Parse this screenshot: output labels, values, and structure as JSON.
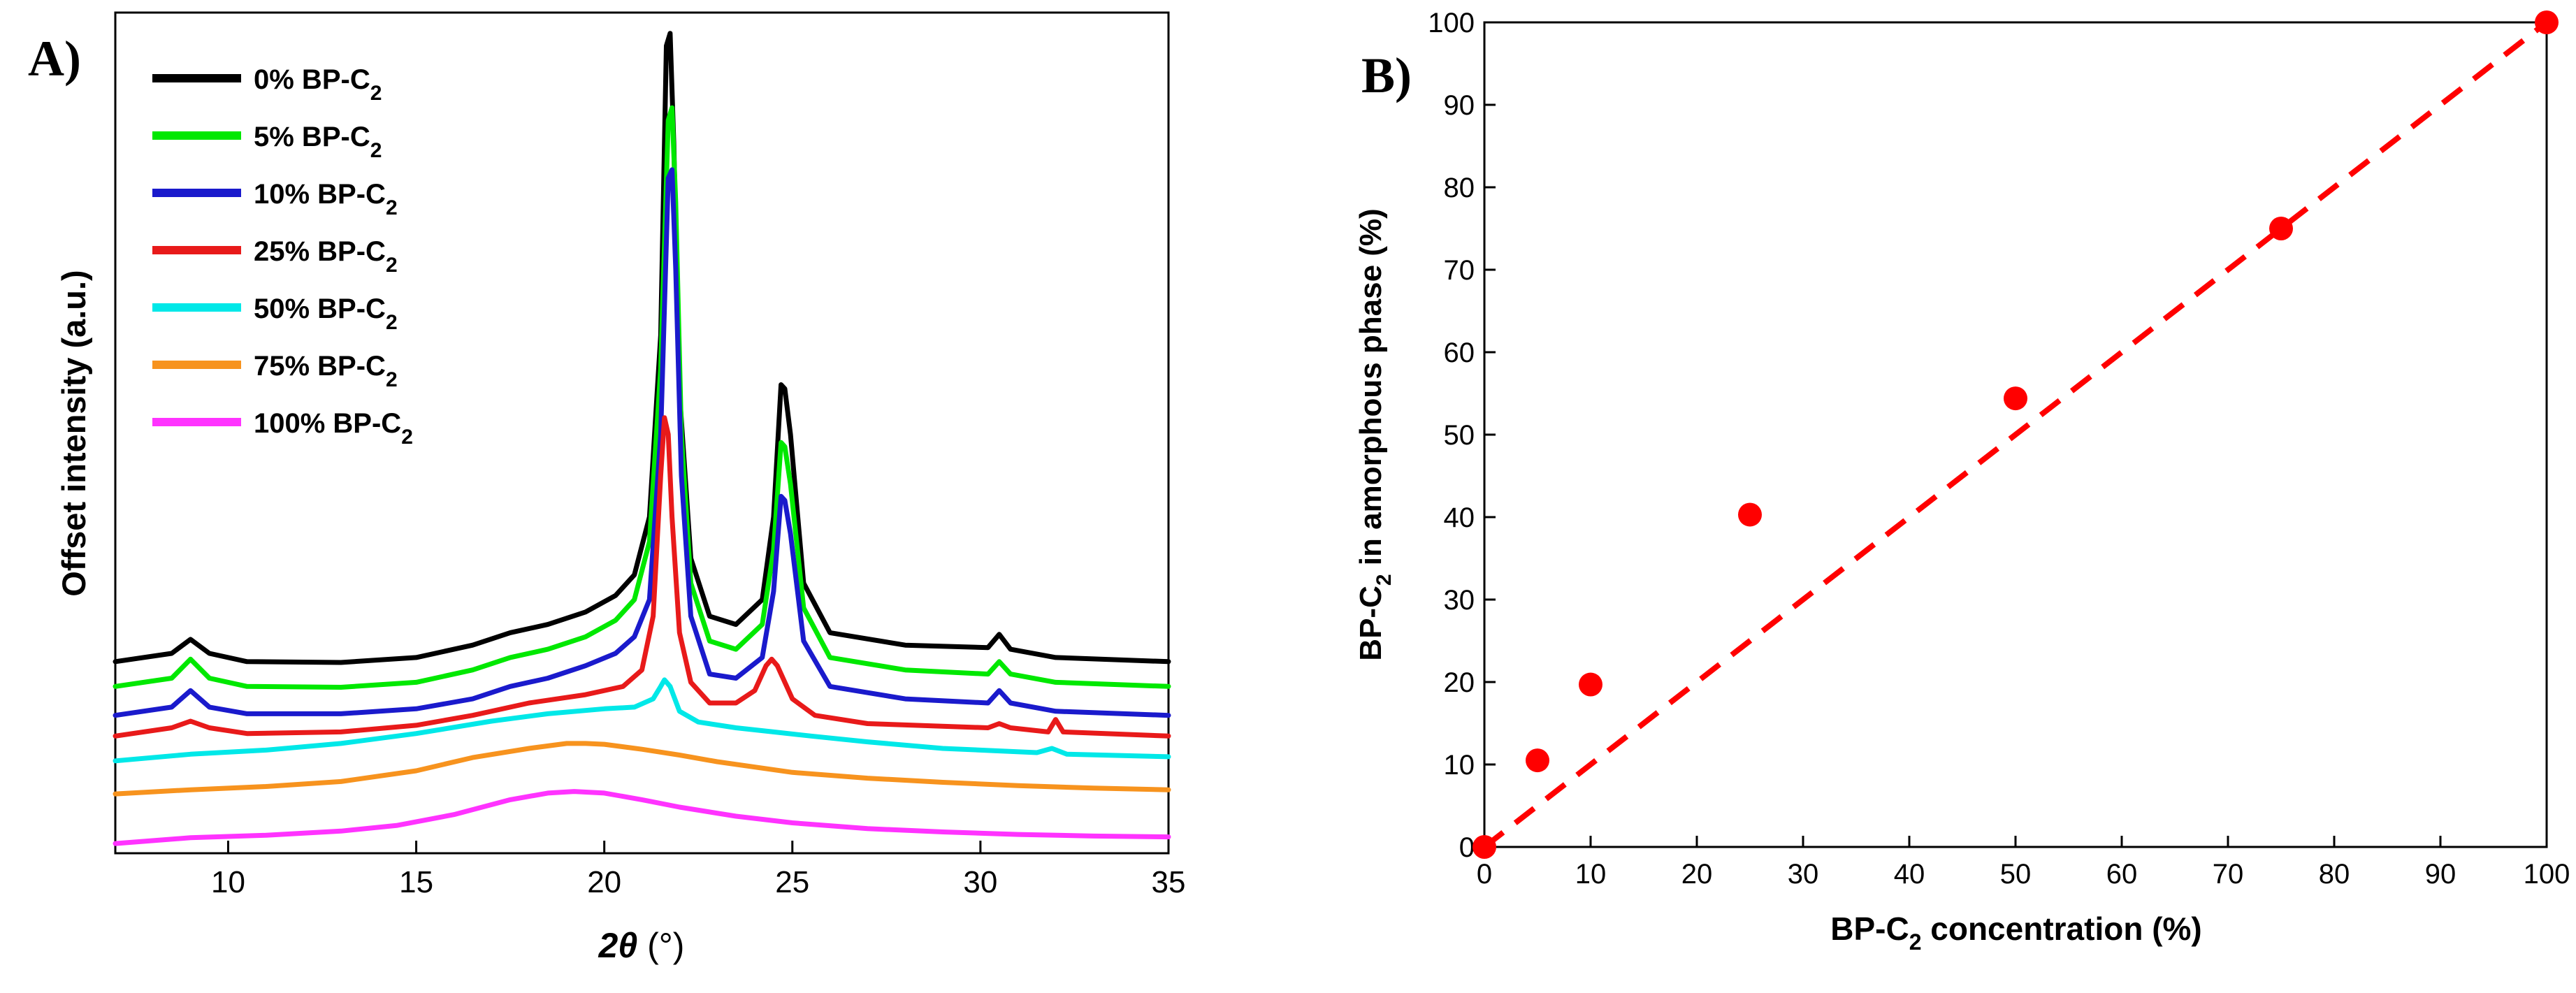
{
  "chart_data": [
    {
      "type": "line",
      "panel_label": "A)",
      "xlabel_symbol": "2θ",
      "xlabel_unit": " (°)",
      "ylabel": "Offset intensity (a.u.)",
      "xlim": [
        7,
        35
      ],
      "xticks": [
        10,
        15,
        20,
        25,
        30,
        35
      ],
      "y_units": "arbitrary (offset intensity, 0–100 scale)",
      "legend_position": "top-left",
      "series": [
        {
          "name": "0% BP-C",
          "name_sub": "2",
          "color": "#000000",
          "x": [
            7,
            8.5,
            9.0,
            9.5,
            10.5,
            13,
            15,
            16.5,
            17.5,
            18.5,
            19.5,
            20.3,
            20.8,
            21.2,
            21.5,
            21.65,
            21.75,
            21.85,
            22.0,
            22.3,
            22.8,
            23.5,
            24.2,
            24.5,
            24.7,
            24.8,
            24.95,
            25.3,
            26.0,
            28,
            30.2,
            30.5,
            30.8,
            32,
            35
          ],
          "y": [
            22.5,
            23.5,
            25.2,
            23.5,
            22.5,
            22.4,
            23.0,
            24.5,
            26.0,
            27.0,
            28.5,
            30.5,
            33.0,
            40.0,
            62.0,
            97.0,
            98.5,
            85.0,
            55.0,
            35.0,
            28.0,
            27.0,
            30.0,
            40.0,
            56.0,
            55.5,
            50.0,
            32.0,
            26.0,
            24.5,
            24.2,
            25.8,
            24.0,
            23.0,
            22.5
          ]
        },
        {
          "name": "5% BP-C",
          "name_sub": "2",
          "color": "#00e800",
          "x": [
            7,
            8.5,
            9.0,
            9.5,
            10.5,
            13,
            15,
            16.5,
            17.5,
            18.5,
            19.5,
            20.3,
            20.8,
            21.2,
            21.5,
            21.7,
            21.8,
            21.9,
            22.05,
            22.3,
            22.8,
            23.5,
            24.2,
            24.5,
            24.7,
            24.8,
            24.95,
            25.3,
            26.0,
            28,
            30.2,
            30.5,
            30.8,
            32,
            35
          ],
          "y": [
            19.5,
            20.5,
            22.8,
            20.5,
            19.5,
            19.4,
            20.0,
            21.5,
            23.0,
            24.0,
            25.5,
            27.5,
            30.0,
            37.0,
            58.0,
            88.0,
            89.5,
            78.0,
            50.0,
            32.0,
            25.0,
            24.0,
            27.0,
            36.0,
            49.0,
            48.5,
            44.0,
            29.0,
            23.0,
            21.5,
            21.0,
            22.5,
            21.0,
            20.0,
            19.5
          ]
        },
        {
          "name": "10% BP-C",
          "name_sub": "2",
          "color": "#1a1acc",
          "x": [
            7,
            8.5,
            9.0,
            9.5,
            10.5,
            13,
            15,
            16.5,
            17.5,
            18.5,
            19.5,
            20.3,
            20.8,
            21.2,
            21.5,
            21.7,
            21.8,
            21.9,
            22.05,
            22.3,
            22.8,
            23.5,
            24.2,
            24.5,
            24.7,
            24.8,
            24.95,
            25.3,
            26.0,
            28,
            30.2,
            30.5,
            30.8,
            32,
            35
          ],
          "y": [
            16.0,
            17.0,
            19.0,
            17.0,
            16.2,
            16.2,
            16.8,
            18.0,
            19.5,
            20.5,
            22.0,
            23.5,
            25.5,
            30.0,
            50.0,
            81.0,
            82.0,
            70.0,
            45.0,
            28.0,
            21.0,
            20.5,
            23.0,
            31.0,
            42.5,
            42.0,
            38.0,
            25.0,
            19.5,
            18.0,
            17.5,
            19.0,
            17.5,
            16.5,
            16.0
          ]
        },
        {
          "name": "25% BP-C",
          "name_sub": "2",
          "color": "#e81a1a",
          "x": [
            7,
            8.5,
            9.0,
            9.5,
            10.5,
            13,
            15,
            16.5,
            18,
            19.5,
            20.5,
            21.0,
            21.3,
            21.5,
            21.6,
            21.7,
            21.8,
            22.0,
            22.3,
            22.8,
            23.5,
            24.0,
            24.3,
            24.45,
            24.6,
            25.0,
            25.6,
            27,
            30.2,
            30.5,
            30.8,
            31.8,
            32.0,
            32.2,
            35
          ],
          "y": [
            13.5,
            14.5,
            15.3,
            14.5,
            13.8,
            14.0,
            14.8,
            16.0,
            17.5,
            18.5,
            19.5,
            21.5,
            28.0,
            45.0,
            52.0,
            50.0,
            40.0,
            26.0,
            20.0,
            17.5,
            17.5,
            19.0,
            22.0,
            22.8,
            22.0,
            18.0,
            16.0,
            15.0,
            14.5,
            15.0,
            14.5,
            14.0,
            15.5,
            14.0,
            13.5
          ]
        },
        {
          "name": "50% BP-C",
          "name_sub": "2",
          "color": "#00e8e8",
          "x": [
            7,
            9,
            11,
            13,
            15,
            17,
            18.5,
            20,
            20.8,
            21.3,
            21.5,
            21.6,
            21.75,
            22.0,
            22.5,
            23.5,
            24.5,
            25.5,
            27,
            29,
            31.5,
            31.9,
            32.3,
            35
          ],
          "y": [
            10.5,
            11.3,
            11.8,
            12.6,
            13.8,
            15.3,
            16.2,
            16.8,
            17.0,
            18.0,
            19.5,
            20.3,
            19.5,
            16.5,
            15.2,
            14.5,
            14.0,
            13.5,
            12.8,
            12.0,
            11.5,
            12.0,
            11.3,
            11.0
          ]
        },
        {
          "name": "75% BP-C",
          "name_sub": "2",
          "color": "#f7931e",
          "x": [
            7,
            9,
            11,
            13,
            15,
            16.5,
            18,
            19,
            19.5,
            20,
            21,
            22,
            23,
            25,
            27,
            29,
            31,
            33,
            35
          ],
          "y": [
            6.5,
            7.0,
            7.4,
            8.0,
            9.3,
            10.9,
            12.0,
            12.6,
            12.6,
            12.5,
            11.9,
            11.2,
            10.4,
            9.1,
            8.4,
            7.9,
            7.5,
            7.2,
            7.0
          ]
        },
        {
          "name": "100% BP-C",
          "name_sub": "2",
          "color": "#ff33ff",
          "x": [
            7,
            9,
            11,
            13,
            14.5,
            16,
            17.5,
            18.5,
            19.2,
            20,
            21,
            22,
            23.5,
            25,
            27,
            29,
            31,
            33,
            35
          ],
          "y": [
            0.5,
            1.2,
            1.5,
            2.0,
            2.7,
            4.0,
            5.8,
            6.6,
            6.8,
            6.6,
            5.8,
            4.9,
            3.8,
            3.0,
            2.3,
            1.9,
            1.6,
            1.4,
            1.3
          ]
        }
      ]
    },
    {
      "type": "scatter",
      "panel_label": "B)",
      "xlabel": "BP-C",
      "xlabel_sub": "2",
      "xlabel_rest": " concentration (%)",
      "ylabel": "BP-C",
      "ylabel_sub": "2",
      "ylabel_rest": " in amorphous phase (%)",
      "xlim": [
        0,
        100
      ],
      "ylim": [
        0,
        100
      ],
      "xticks": [
        0,
        10,
        20,
        30,
        40,
        50,
        60,
        70,
        80,
        90,
        100
      ],
      "yticks": [
        0,
        10,
        20,
        30,
        40,
        50,
        60,
        70,
        80,
        90,
        100
      ],
      "marker_color": "#ff0000",
      "points": {
        "x": [
          0,
          5,
          10,
          25,
          50,
          75,
          100
        ],
        "y": [
          0,
          10.5,
          19.7,
          40.3,
          54.4,
          75,
          100
        ]
      },
      "reference_line": {
        "x": [
          0,
          100
        ],
        "y": [
          0,
          100
        ],
        "style": "dashed",
        "color": "#ff0000"
      }
    }
  ]
}
